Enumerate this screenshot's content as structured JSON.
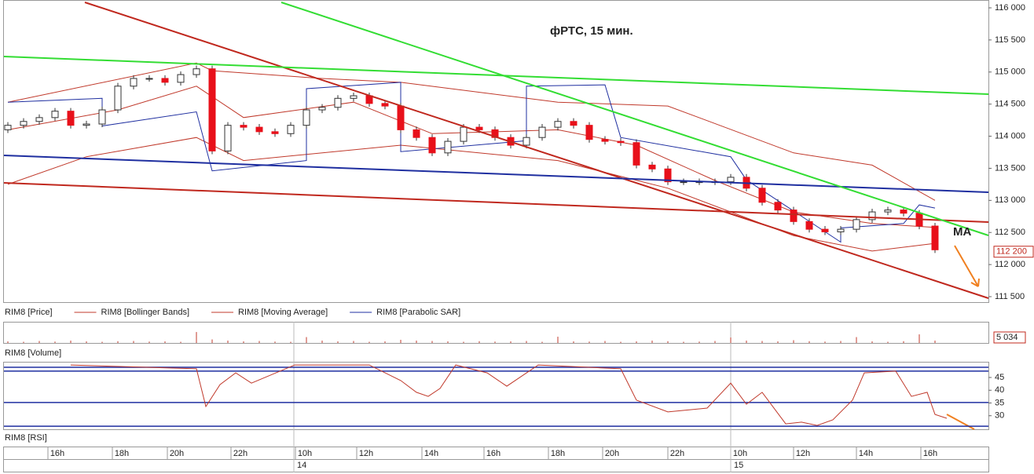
{
  "chart_data": [
    {
      "type": "candlestick",
      "title": "фРТС, 15 мин.",
      "annotation": "MA",
      "legend": [
        {
          "name": "RIM8 [Price]",
          "color": null
        },
        {
          "name": "RIM8 [Bollinger Bands]",
          "color": "#c0392b"
        },
        {
          "name": "RIM8 [Moving Average]",
          "color": "#c0392b"
        },
        {
          "name": "RIM8 [Parabolic SAR]",
          "color": "#1f2fa0"
        }
      ],
      "open": [
        114100,
        114170,
        114230,
        114290,
        114390,
        114170,
        114190,
        114410,
        114780,
        114900,
        114900,
        114840,
        114960,
        115050,
        113770,
        114170,
        114140,
        114070,
        114040,
        114170,
        114410,
        114450,
        114590,
        114630,
        114510,
        114470,
        114100,
        113980,
        113740,
        113920,
        114140,
        114100,
        113980,
        113860,
        113980,
        114140,
        114230,
        114170,
        113950,
        113920,
        113900,
        113550,
        113490,
        113290,
        113290,
        113290,
        113290,
        113360,
        113190,
        112970,
        112850,
        112670,
        112550,
        112510,
        112550,
        112700,
        112820,
        112850,
        112800,
        112600
      ],
      "high": [
        114220,
        114280,
        114340,
        114440,
        114440,
        114240,
        114460,
        114830,
        114950,
        114950,
        114950,
        115010,
        115100,
        115100,
        114220,
        114220,
        114190,
        114120,
        114220,
        114460,
        114500,
        114640,
        114680,
        114680,
        114560,
        114520,
        114150,
        114030,
        113970,
        114190,
        114190,
        114150,
        114030,
        114030,
        114190,
        114280,
        114280,
        114220,
        114000,
        113970,
        113950,
        113600,
        113540,
        113340,
        113340,
        113340,
        113410,
        113410,
        113240,
        113020,
        112900,
        112720,
        112600,
        112600,
        112750,
        112870,
        112900,
        112900,
        112850,
        112650
      ],
      "low": [
        114050,
        114120,
        114180,
        114240,
        114120,
        114120,
        114140,
        114360,
        114730,
        114850,
        114790,
        114790,
        114910,
        113720,
        113720,
        114090,
        114020,
        113990,
        113990,
        114120,
        114360,
        114400,
        114540,
        114460,
        114420,
        114050,
        113930,
        113690,
        113690,
        113870,
        114050,
        113930,
        113810,
        113810,
        113930,
        114090,
        114120,
        113900,
        113870,
        113850,
        113500,
        113440,
        113240,
        113240,
        113240,
        113240,
        113240,
        113140,
        112920,
        112800,
        112620,
        112500,
        112460,
        112460,
        112500,
        112650,
        112770,
        112750,
        112550,
        112180
      ],
      "close": [
        114170,
        114230,
        114290,
        114390,
        114170,
        114190,
        114410,
        114780,
        114900,
        114900,
        114840,
        114960,
        115050,
        113770,
        114170,
        114140,
        114070,
        114040,
        114170,
        114410,
        114450,
        114590,
        114630,
        114510,
        114470,
        114100,
        113980,
        113740,
        113920,
        114140,
        114100,
        113980,
        113860,
        113980,
        114140,
        114230,
        114170,
        113950,
        113920,
        113900,
        113550,
        113490,
        113290,
        113290,
        113290,
        113290,
        113360,
        113190,
        112970,
        112850,
        112670,
        112550,
        112510,
        112550,
        112700,
        112820,
        112850,
        112800,
        112600,
        112230
      ],
      "bollinger_upper": {
        "x": [
          0,
          12,
          13,
          20,
          25,
          35,
          42,
          50,
          55,
          59
        ],
        "values": [
          114530,
          115140,
          115020,
          114900,
          114840,
          114530,
          114470,
          113740,
          113550,
          113000
        ]
      },
      "bollinger_lower": {
        "x": [
          0,
          5,
          12,
          15,
          25,
          35,
          42,
          50,
          55,
          59
        ],
        "values": [
          113250,
          113680,
          113980,
          113620,
          113860,
          113620,
          113190,
          112450,
          112210,
          112330
        ]
      },
      "moving_average": {
        "x": [
          0,
          7,
          12,
          15,
          22,
          27,
          35,
          40,
          45,
          50,
          55,
          59
        ],
        "values": [
          114100,
          114410,
          114780,
          114290,
          114530,
          114040,
          114100,
          113860,
          113310,
          112820,
          112640,
          112580
        ]
      },
      "sar": {
        "x": [
          0,
          6,
          6,
          12,
          13,
          19,
          19,
          25,
          25,
          33,
          33,
          38,
          39,
          46,
          47,
          53,
          53,
          57,
          58,
          59
        ],
        "values": [
          114530,
          114590,
          114160,
          114380,
          113460,
          113620,
          114740,
          114840,
          113760,
          113930,
          114780,
          114800,
          113980,
          113680,
          113320,
          112350,
          112570,
          112640,
          112930,
          112880
        ]
      },
      "ylim": [
        111500,
        116000
      ],
      "yticks": [
        {
          "value": 111500,
          "label": "111 500"
        },
        {
          "value": 112000,
          "label": "112 000"
        },
        {
          "value": 112500,
          "label": "112 500"
        },
        {
          "value": 113000,
          "label": "113 000"
        },
        {
          "value": 113500,
          "label": "113 500"
        },
        {
          "value": 114000,
          "label": "114 000"
        },
        {
          "value": 114500,
          "label": "114 500"
        },
        {
          "value": 115000,
          "label": "115 000"
        },
        {
          "value": 115500,
          "label": "115 500"
        },
        {
          "value": 116000,
          "label": "116 000"
        }
      ],
      "last_price": {
        "value": 112200,
        "label": "112 200"
      },
      "xticks": [
        {
          "value": 3.15,
          "label": "16h"
        },
        {
          "value": 7.25,
          "label": "18h"
        },
        {
          "value": 10.75,
          "label": "20h"
        },
        {
          "value": 14.8,
          "label": "22h"
        },
        {
          "value": 18.9,
          "label": "10h"
        },
        {
          "value": 22.8,
          "label": "12h"
        },
        {
          "value": 26.95,
          "label": "14h"
        },
        {
          "value": 30.9,
          "label": "16h"
        },
        {
          "value": 35,
          "label": "18h"
        },
        {
          "value": 38.45,
          "label": "20h"
        },
        {
          "value": 42.6,
          "label": "22h"
        },
        {
          "value": 46.6,
          "label": "10h"
        },
        {
          "value": 50.6,
          "label": "12h"
        },
        {
          "value": 54.6,
          "label": "14h"
        },
        {
          "value": 58.7,
          "label": "16h"
        }
      ],
      "date_ticks": [
        {
          "value": 18.4,
          "label": "14"
        },
        {
          "value": 46.2,
          "label": "15"
        }
      ]
    },
    {
      "type": "bar",
      "label": "RIM8 [Volume]",
      "color": "#c0392b",
      "values": [
        400,
        300,
        500,
        350,
        600,
        400,
        300,
        450,
        500,
        350,
        400,
        300,
        2800,
        900,
        600,
        400,
        500,
        350,
        300,
        1500,
        600,
        400,
        500,
        300,
        400,
        800,
        600,
        500,
        400,
        300,
        450,
        350,
        400,
        500,
        300,
        1600,
        400,
        350,
        500,
        300,
        400,
        600,
        450,
        300,
        350,
        500,
        1400,
        600,
        500,
        400,
        700,
        450,
        350,
        500,
        1500,
        400,
        300,
        450,
        2200,
        600
      ],
      "ylim": [
        0,
        5034
      ],
      "yticks": [
        {
          "value": 5034,
          "label": "5 034"
        }
      ]
    },
    {
      "type": "line",
      "label": "RIM8 [RSI]",
      "color": "#c0392b",
      "level_color": "#1f2fa0",
      "x": [
        4,
        12,
        12.6,
        13.5,
        14.5,
        15.5,
        18.25,
        23,
        25,
        26,
        26.75,
        27.5,
        28.5,
        30.5,
        31.75,
        33.75,
        39,
        40,
        42,
        44.5,
        46,
        47,
        48,
        49.5,
        50.5,
        51.5,
        52.5,
        53.75,
        54.5,
        56.5,
        57.5,
        58.5,
        59,
        59.75
      ],
      "values": [
        49.9,
        48.4,
        33.6,
        42.2,
        46.8,
        42.8,
        49.9,
        49.9,
        43.8,
        39.2,
        37.6,
        40.7,
        49.9,
        46.8,
        41.6,
        49.9,
        48.4,
        36.1,
        31.5,
        33,
        42.8,
        34.5,
        39.2,
        26.8,
        27.5,
        26.2,
        28.4,
        36.1,
        46.8,
        47.5,
        37.6,
        39.2,
        30.5,
        29
      ],
      "levels": [
        49,
        47.5,
        35.2,
        25.9
      ],
      "ylim": [
        25,
        50
      ],
      "yticks": [
        30,
        35,
        40,
        45
      ]
    }
  ]
}
